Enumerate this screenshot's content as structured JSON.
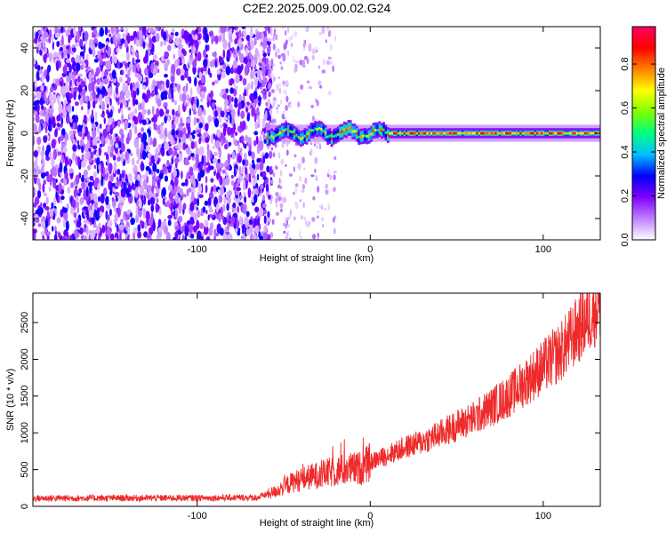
{
  "title": "C2E2.2025.009.00.02.G24",
  "chart_data": [
    {
      "type": "heatmap",
      "xlabel": "Height of straight line (km)",
      "ylabel": "Frequency (Hz)",
      "xlim": [
        -195,
        133
      ],
      "ylim": [
        -50,
        50
      ],
      "xticks": [
        -100,
        0,
        100
      ],
      "yticks": [
        -40,
        -20,
        0,
        20,
        40
      ],
      "colorbar": {
        "label": "Normalized spectral amplitude",
        "range": [
          0,
          0.97
        ],
        "ticks": [
          0.0,
          0.2,
          0.4,
          0.6,
          0.8
        ],
        "colors": [
          "#ffffff",
          "#c080ff",
          "#8000ff",
          "#0000ff",
          "#00c0ff",
          "#00ff80",
          "#80ff00",
          "#ffff00",
          "#ff8000",
          "#ff0000",
          "#ff0060"
        ]
      },
      "regions": [
        {
          "desc": "noise",
          "x_from": -195,
          "x_to": -57,
          "amplitude": [
            0.05,
            0.3
          ],
          "freq_spread": 50
        },
        {
          "desc": "sparse",
          "x_from": -57,
          "x_to": -20,
          "amplitude": [
            0.02,
            0.12
          ],
          "freq_spread": 50
        },
        {
          "desc": "signal",
          "x_from": -60,
          "x_to": 133,
          "center_freq": 0,
          "amplitude": [
            0.4,
            0.97
          ]
        }
      ]
    },
    {
      "type": "line",
      "xlabel": "Height of straight line (km)",
      "ylabel": "SNR (10 * v/v)",
      "xlim": [
        -195,
        133
      ],
      "ylim": [
        0,
        2900
      ],
      "xticks": [
        -100,
        0,
        100
      ],
      "yticks": [
        0,
        500,
        1000,
        1500,
        2000,
        2500
      ],
      "series": [
        {
          "color": "#ee2a2a",
          "envelope_x": [
            -195,
            -100,
            -65,
            -55,
            -45,
            -35,
            -25,
            -15,
            -5,
            0,
            10,
            20,
            30,
            40,
            50,
            60,
            70,
            80,
            90,
            100,
            110,
            120,
            130,
            133
          ],
          "envelope_y": [
            110,
            115,
            120,
            200,
            330,
            400,
            450,
            500,
            520,
            600,
            700,
            800,
            880,
            980,
            1100,
            1200,
            1350,
            1500,
            1700,
            1900,
            2100,
            2400,
            2700,
            2800
          ]
        }
      ]
    }
  ]
}
